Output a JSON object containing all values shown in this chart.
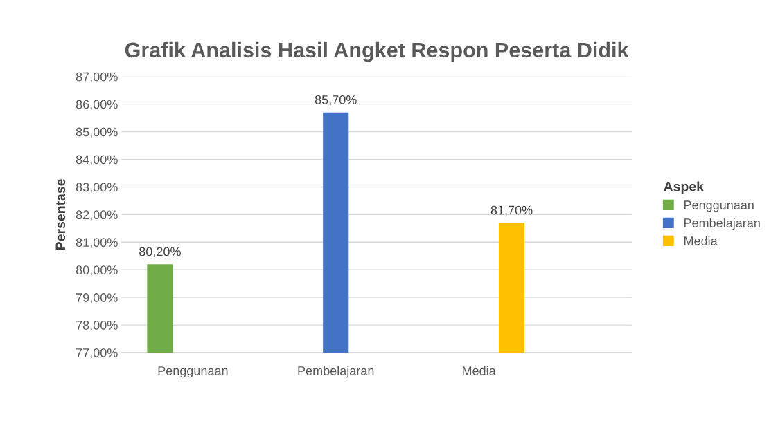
{
  "chart_data": {
    "type": "bar",
    "title": "Grafik Analisis Hasil Angket Respon Peserta Didik",
    "ylabel": "Persentase",
    "legend_title": "Aspek",
    "categories": [
      "Penggunaan",
      "Pembelajaran",
      "Media"
    ],
    "series": [
      {
        "name": "Penggunaan",
        "color": "#70ad47",
        "values": [
          80.2,
          null,
          null
        ],
        "value_labels": [
          "80,20%",
          null,
          null
        ]
      },
      {
        "name": "Pembelajaran",
        "color": "#4472c4",
        "values": [
          null,
          85.7,
          null
        ],
        "value_labels": [
          null,
          "85,70%",
          null
        ]
      },
      {
        "name": "Media",
        "color": "#ffc000",
        "values": [
          null,
          null,
          81.7
        ],
        "value_labels": [
          null,
          null,
          "81,70%"
        ]
      }
    ],
    "ylim": [
      77,
      87
    ],
    "yticks": [
      {
        "value": 77,
        "label": "77,00%"
      },
      {
        "value": 78,
        "label": "78,00%"
      },
      {
        "value": 79,
        "label": "79,00%"
      },
      {
        "value": 80,
        "label": "80,00%"
      },
      {
        "value": 81,
        "label": "81,00%"
      },
      {
        "value": 82,
        "label": "82,00%"
      },
      {
        "value": 83,
        "label": "83,00%"
      },
      {
        "value": 84,
        "label": "84,00%"
      },
      {
        "value": 85,
        "label": "85,00%"
      },
      {
        "value": 86,
        "label": "86,00%"
      },
      {
        "value": 87,
        "label": "87,00%"
      }
    ],
    "grid": "y",
    "legend": "right"
  }
}
